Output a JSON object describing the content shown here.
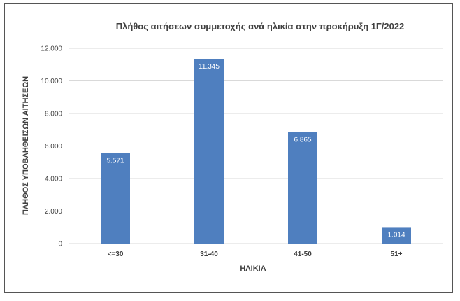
{
  "chart_data": {
    "type": "bar",
    "title": "Πλήθος αιτήσεων συμμετοχής ανά ηλικία στην προκήρυξη 1Γ/2022",
    "xlabel": "ΗΛΙΚΙΑ",
    "ylabel": "ΠΛΗΘΟΣ ΥΠΟΒΛΗΘΕΙΣΩΝ ΑΙΤΗΣΕΩΝ",
    "categories": [
      "<=30",
      "31-40",
      "41-50",
      "51+"
    ],
    "values": [
      5571,
      11345,
      6865,
      1014
    ],
    "data_labels": [
      "5.571",
      "11.345",
      "6.865",
      "1.014"
    ],
    "ylim": [
      0,
      12000
    ],
    "yticks": [
      0,
      2000,
      4000,
      6000,
      8000,
      10000,
      12000
    ],
    "ytick_labels": [
      "0",
      "2.000",
      "4.000",
      "6.000",
      "8.000",
      "10.000",
      "12.000"
    ],
    "grid": true,
    "legend": "none",
    "bar_color": "#4f7fbf",
    "grid_color": "#d9d9d9",
    "text_color": "#404040"
  }
}
